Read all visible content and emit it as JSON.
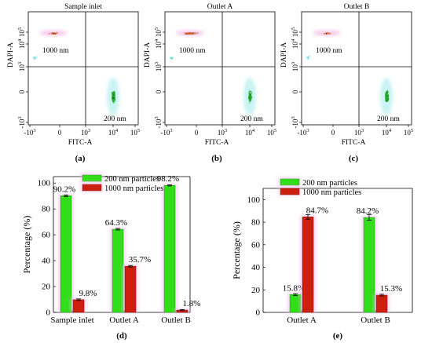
{
  "colors": {
    "green": "#33dd1a",
    "green_dark": "#1f9a12",
    "red": "#cc1f0e",
    "red_dark": "#8a1408",
    "glow": "#f3bdf0",
    "flow_green": "#23b02a",
    "flow_orange": "#d2691e",
    "flow_pink": "#ee88cc",
    "flow_cyan": "#66dddd"
  },
  "chart_data": [
    {
      "type": "scatter",
      "panel_label": "(a)",
      "title": "Sample inlet",
      "xlabel": "FITC-A",
      "ylabel": "DAPI-A",
      "xticks": [
        "-10^3",
        "0",
        "10^3",
        "10^4",
        "10^5"
      ],
      "yticks": [
        "-10^3",
        "0",
        "10^3",
        "10^4",
        "10^5"
      ],
      "quadrant_divider": {
        "x": "10^3",
        "y": "10^3"
      },
      "populations": [
        {
          "name": "1000 nm",
          "x_range": [
            "-10^3",
            "10^3"
          ],
          "y_center": "10^5",
          "density": "low"
        },
        {
          "name": "200 nm",
          "x_center": "10^4",
          "y_range": [
            "-10^3",
            "10^3"
          ],
          "density": "high"
        }
      ]
    },
    {
      "type": "scatter",
      "panel_label": "(b)",
      "title": "Outlet A",
      "xlabel": "FITC-A",
      "ylabel": "DAPI-A",
      "xticks": [
        "-10^3",
        "0",
        "10^3",
        "10^4",
        "10^5"
      ],
      "yticks": [
        "-10^3",
        "0",
        "10^3",
        "10^4",
        "10^5"
      ],
      "quadrant_divider": {
        "x": "10^3",
        "y": "10^3"
      },
      "populations": [
        {
          "name": "1000 nm",
          "x_range": [
            "-10^3",
            "10^3"
          ],
          "y_center": "10^5",
          "density": "high"
        },
        {
          "name": "200 nm",
          "x_center": "10^4",
          "y_range": [
            "-10^3",
            "10^3"
          ],
          "density": "medium"
        }
      ]
    },
    {
      "type": "scatter",
      "panel_label": "(c)",
      "title": "Outlet B",
      "xlabel": "FITC-A",
      "ylabel": "DAPI-A",
      "xticks": [
        "-10^3",
        "0",
        "10^3",
        "10^4",
        "10^5"
      ],
      "yticks": [
        "-10^3",
        "0",
        "10^3",
        "10^4",
        "10^5"
      ],
      "quadrant_divider": {
        "x": "10^3",
        "y": "10^3"
      },
      "populations": [
        {
          "name": "1000 nm",
          "x_range": [
            "-10^3",
            "10^3"
          ],
          "y_center": "10^5",
          "density": "very low"
        },
        {
          "name": "200 nm",
          "x_center": "10^4",
          "y_range": [
            "-10^3",
            "10^3"
          ],
          "density": "high"
        }
      ]
    },
    {
      "type": "bar",
      "panel_label": "(d)",
      "categories": [
        "Sample inlet",
        "Outlet A",
        "Outlet B"
      ],
      "series": [
        {
          "name": "200 nm particles",
          "values": [
            90.2,
            64.3,
            98.2
          ],
          "labels": [
            "90.2%",
            "64.3%",
            "98.2%"
          ],
          "errors": [
            0.6,
            0.6,
            0.4
          ]
        },
        {
          "name": "1000 nm particles",
          "values": [
            9.8,
            35.7,
            1.8
          ],
          "labels": [
            "9.8%",
            "35.7%",
            "1.8%"
          ],
          "errors": [
            0.6,
            0.6,
            0.4
          ]
        }
      ],
      "ylabel": "Percentage (%)",
      "ylim": [
        0,
        100
      ],
      "yticks": [
        0,
        20,
        40,
        60,
        80,
        100
      ],
      "legend": "top"
    },
    {
      "type": "bar",
      "panel_label": "(e)",
      "categories": [
        "Outlet A",
        "Outlet B"
      ],
      "series": [
        {
          "name": "200 nm particles",
          "values": [
            15.8,
            84.2
          ],
          "labels": [
            "15.8%",
            "84.2%"
          ],
          "errors": [
            0.8,
            2.5
          ]
        },
        {
          "name": "1000 nm particles",
          "values": [
            84.7,
            15.3
          ],
          "labels": [
            "84.7%",
            "15.3%"
          ],
          "errors": [
            2.0,
            0.8
          ]
        }
      ],
      "ylabel": "Percentage (%)",
      "ylim": [
        0,
        110
      ],
      "yticks": [
        0,
        20,
        40,
        60,
        80,
        100
      ],
      "legend": "top"
    }
  ]
}
